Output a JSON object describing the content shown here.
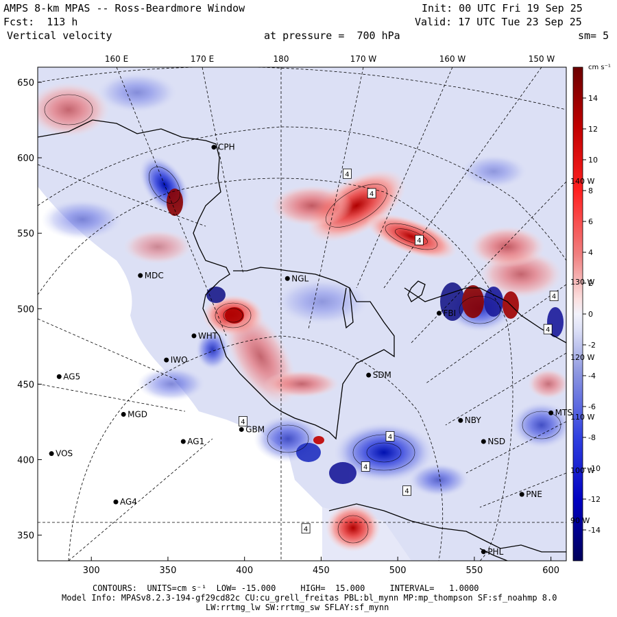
{
  "header": {
    "model": "AMPS 8-km MPAS -- Ross-Beardmore Window",
    "init": "Init: 00 UTC Fri 19 Sep 25",
    "fcst": "Fcst:  113 h",
    "valid": "Valid: 17 UTC Tue 23 Sep 25",
    "field": "Vertical velocity",
    "pressure": "at pressure =  700 hPa",
    "smooth": "sm= 5"
  },
  "top_lon_labels": [
    "160 E",
    "170 E",
    "180",
    "170 W",
    "160 W",
    "150 W"
  ],
  "right_lon_labels": [
    "140 W",
    "130 W",
    "120 W",
    "110 W",
    "100 W",
    "90 W"
  ],
  "y_axis": {
    "ticks": [
      650,
      600,
      550,
      500,
      450,
      400,
      350
    ],
    "range": [
      333,
      660
    ]
  },
  "x_axis": {
    "ticks": [
      300,
      350,
      400,
      450,
      500,
      550,
      600
    ],
    "range": [
      265,
      610
    ]
  },
  "colorbar": {
    "units": "cm s⁻¹",
    "ticks": [
      "14",
      "12",
      "10",
      "8",
      "6",
      "4",
      "2",
      "0",
      "-2",
      "-4",
      "-6",
      "-8",
      "-10",
      "-12",
      "-14"
    ],
    "range": [
      -16,
      16
    ]
  },
  "stations": [
    {
      "name": "CPH",
      "x": 380,
      "y": 607
    },
    {
      "name": "MDC",
      "x": 332,
      "y": 522
    },
    {
      "name": "NGL",
      "x": 428,
      "y": 520
    },
    {
      "name": "WHT",
      "x": 367,
      "y": 482
    },
    {
      "name": "IWO",
      "x": 349,
      "y": 466
    },
    {
      "name": "AG5",
      "x": 279,
      "y": 455
    },
    {
      "name": "SDM",
      "x": 481,
      "y": 456
    },
    {
      "name": "MGD",
      "x": 321,
      "y": 430
    },
    {
      "name": "NBY",
      "x": 541,
      "y": 426
    },
    {
      "name": "AG1",
      "x": 360,
      "y": 412
    },
    {
      "name": "NSD",
      "x": 556,
      "y": 412
    },
    {
      "name": "MTS",
      "x": 600,
      "y": 431
    },
    {
      "name": "VOS",
      "x": 274,
      "y": 404
    },
    {
      "name": "AG4",
      "x": 316,
      "y": 372
    },
    {
      "name": "PNE",
      "x": 581,
      "y": 377
    },
    {
      "name": "PHL",
      "x": 556,
      "y": 339
    },
    {
      "name": "FBI",
      "x": 527,
      "y": 497
    },
    {
      "name": "GBM",
      "x": 398,
      "y": 420
    }
  ],
  "contour_tags": [
    {
      "label": "4",
      "x": 467,
      "y": 589
    },
    {
      "label": "4",
      "x": 483,
      "y": 576
    },
    {
      "label": "4",
      "x": 514,
      "y": 545
    },
    {
      "label": "4",
      "x": 602,
      "y": 508
    },
    {
      "label": "4",
      "x": 598,
      "y": 486
    },
    {
      "label": "4",
      "x": 495,
      "y": 415
    },
    {
      "label": "4",
      "x": 479,
      "y": 395
    },
    {
      "label": "4",
      "x": 506,
      "y": 379
    },
    {
      "label": "4",
      "x": 440,
      "y": 354
    },
    {
      "label": "4",
      "x": 399,
      "y": 425
    }
  ],
  "footer": {
    "contours": "CONTOURS:  UNITS=cm s⁻¹  LOW= -15.000     HIGH=  15.000     INTERVAL=   1.0000",
    "model_info": "Model Info: MPASv8.2.3-194-gf29cd82c CU:cu_grell_freitas PBL:bl_mynn MP:mp_thompson SF:sf_noahmp 8.0",
    "model_info2": "LW:rrtmg_lw SW:rrtmg_sw SFLAY:sf_mynn"
  },
  "colors": {
    "up_max": "#7f0000",
    "down_max": "#00007f",
    "neutral": "#eef0fb"
  }
}
